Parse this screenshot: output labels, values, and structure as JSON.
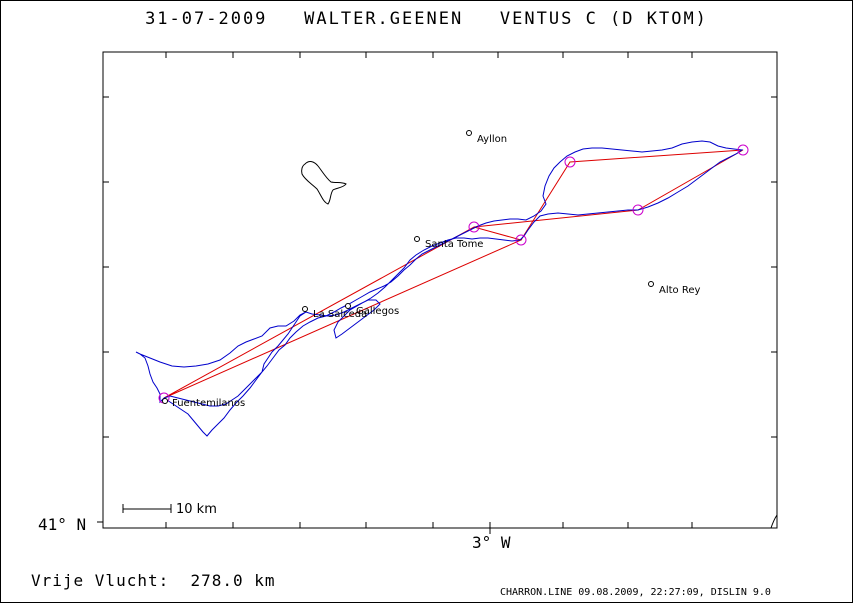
{
  "header": {
    "date": "31-07-2009",
    "pilot": "WALTER.GEENEN",
    "glider": "VENTUS C (D KTOM)"
  },
  "axes": {
    "lat_label": "41° N",
    "lon_label": "3° W"
  },
  "scale_bar": {
    "label": "10 km"
  },
  "places": [
    {
      "name": "Ayllon"
    },
    {
      "name": "Santa Tome"
    },
    {
      "name": "Alto Rey"
    },
    {
      "name": "La Salceda"
    },
    {
      "name": "Gallegos"
    },
    {
      "name": "Fuentemilanos"
    }
  ],
  "summary": {
    "label": "Vrije Vlucht:",
    "distance": "278.0 km"
  },
  "footer": {
    "credit": "CHARRON.LINE 09.08.2009, 22:27:09, DISLIN 9.0"
  },
  "colors": {
    "track": "#0000cc",
    "task": "#dd0000",
    "turnpoint": "#cc00cc",
    "frame": "#000000"
  }
}
